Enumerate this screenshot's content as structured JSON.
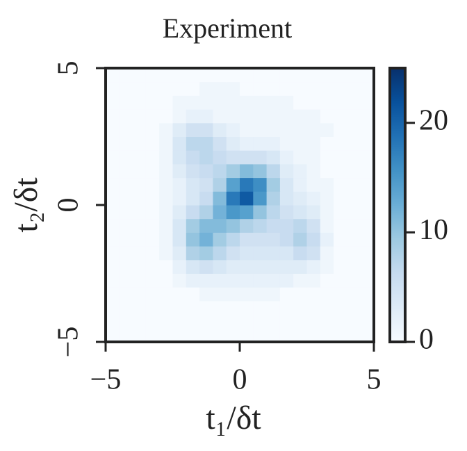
{
  "chart_data": {
    "type": "heatmap",
    "title": "Experiment",
    "xlabel": "t₁/δt",
    "ylabel": "t₂/δt",
    "xlim": [
      -5,
      5
    ],
    "ylim": [
      -5,
      5
    ],
    "xticks": [
      {
        "value": -5,
        "label": "−5"
      },
      0,
      5
    ],
    "yticks": [
      {
        "value": -5,
        "label": "−5"
      },
      0,
      5
    ],
    "xbins": [
      -5,
      -4.5,
      -4,
      -3.5,
      -3,
      -2.5,
      -2,
      -1.5,
      -1,
      -0.5,
      0,
      0.5,
      1,
      1.5,
      2,
      2.5,
      3,
      3.5,
      4,
      4.5,
      5
    ],
    "ybins": [
      -5,
      -4.5,
      -4,
      -3.5,
      -3,
      -2.5,
      -2,
      -1.5,
      -1,
      -0.5,
      0,
      0.5,
      1,
      1.5,
      2,
      2.5,
      3,
      3.5,
      4,
      4.5,
      5
    ],
    "values": [
      [
        0,
        0,
        0,
        0,
        0,
        0,
        0,
        0,
        0,
        0,
        0,
        0,
        0,
        0,
        0,
        0,
        0,
        0,
        0,
        0
      ],
      [
        0,
        0,
        0,
        0,
        0,
        0,
        0,
        0,
        0,
        0,
        0,
        0,
        0,
        0,
        0,
        0,
        0,
        0,
        0,
        0
      ],
      [
        0,
        0,
        0,
        0,
        0,
        0,
        0,
        0,
        0,
        0,
        0,
        0,
        0,
        0,
        0,
        0,
        0,
        0,
        0,
        0
      ],
      [
        0,
        0,
        0,
        0,
        0,
        0,
        0,
        1,
        1,
        1,
        1,
        1,
        1,
        0,
        0,
        0,
        0,
        0,
        0,
        0
      ],
      [
        0,
        0,
        0,
        0,
        0,
        1,
        2,
        2,
        2,
        2,
        2,
        2,
        2,
        2,
        1,
        1,
        0,
        0,
        0,
        0
      ],
      [
        0,
        0,
        0,
        0,
        0,
        2,
        4,
        5,
        4,
        3,
        3,
        3,
        3,
        3,
        3,
        2,
        1,
        0,
        0,
        0
      ],
      [
        0,
        0,
        0,
        0,
        1,
        3,
        8,
        9,
        7,
        5,
        4,
        4,
        4,
        4,
        6,
        5,
        1,
        0,
        0,
        0
      ],
      [
        0,
        0,
        0,
        0,
        1,
        4,
        10,
        12,
        9,
        7,
        5,
        5,
        5,
        6,
        8,
        6,
        2,
        0,
        0,
        0
      ],
      [
        0,
        0,
        0,
        0,
        1,
        4,
        9,
        11,
        11,
        10,
        8,
        7,
        6,
        6,
        7,
        5,
        1,
        0,
        0,
        0
      ],
      [
        0,
        0,
        0,
        0,
        1,
        3,
        6,
        8,
        12,
        15,
        14,
        10,
        7,
        5,
        4,
        3,
        1,
        0,
        0,
        0
      ],
      [
        0,
        0,
        0,
        0,
        1,
        2,
        4,
        6,
        11,
        18,
        21,
        15,
        8,
        4,
        3,
        2,
        1,
        0,
        0,
        0
      ],
      [
        0,
        0,
        0,
        0,
        1,
        2,
        4,
        5,
        8,
        14,
        18,
        16,
        9,
        4,
        2,
        1,
        1,
        0,
        0,
        0
      ],
      [
        0,
        0,
        0,
        0,
        1,
        3,
        5,
        6,
        7,
        9,
        11,
        10,
        7,
        3,
        2,
        1,
        0,
        0,
        0,
        0
      ],
      [
        0,
        0,
        0,
        0,
        1,
        4,
        6,
        7,
        6,
        5,
        5,
        5,
        4,
        2,
        1,
        1,
        0,
        0,
        0,
        0
      ],
      [
        0,
        0,
        0,
        0,
        1,
        4,
        7,
        7,
        5,
        3,
        2,
        2,
        2,
        1,
        1,
        1,
        0,
        0,
        0,
        0
      ],
      [
        0,
        0,
        0,
        0,
        1,
        3,
        5,
        5,
        3,
        2,
        1,
        1,
        1,
        1,
        1,
        1,
        1,
        0,
        0,
        0
      ],
      [
        0,
        0,
        0,
        0,
        0,
        1,
        2,
        2,
        1,
        1,
        1,
        1,
        1,
        1,
        1,
        1,
        0,
        0,
        0,
        0
      ],
      [
        0,
        0,
        0,
        0,
        0,
        1,
        1,
        1,
        1,
        1,
        1,
        1,
        1,
        1,
        0,
        0,
        0,
        0,
        0,
        0
      ],
      [
        0,
        0,
        0,
        0,
        0,
        0,
        0,
        1,
        1,
        1,
        0,
        0,
        0,
        0,
        0,
        0,
        0,
        0,
        0,
        0
      ],
      [
        0,
        0,
        0,
        0,
        0,
        0,
        0,
        0,
        0,
        0,
        0,
        0,
        0,
        0,
        0,
        0,
        0,
        0,
        0,
        0
      ]
    ],
    "clim": [
      0,
      25
    ],
    "cticks": [
      0,
      10,
      20
    ],
    "colormap": [
      "#f7fbff",
      "#deebf7",
      "#c6dbef",
      "#9ecae1",
      "#6baed6",
      "#4292c6",
      "#2171b5",
      "#08519c",
      "#08306b"
    ]
  }
}
